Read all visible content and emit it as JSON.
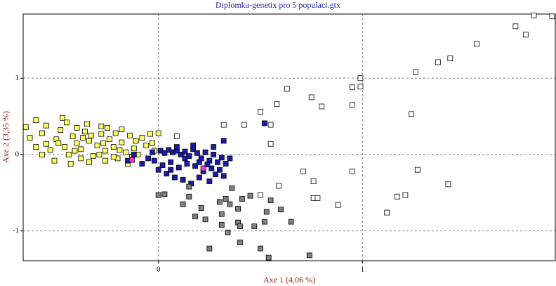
{
  "chart_data": {
    "type": "scatter",
    "title": "Diplomka-genetix pro 5 populaci.gtx",
    "x_label": "Axe 1 (4,06 %)",
    "y_label": "Axe 2 (3,35 %)",
    "xlim": [
      -0.663,
      1.945
    ],
    "ylim": [
      -1.39,
      1.84
    ],
    "xticks": [
      0,
      1
    ],
    "yticks": [
      -1,
      0,
      1
    ],
    "grid": true,
    "series": [
      {
        "color": "#ffff66",
        "x": [
          -0.65,
          -0.63,
          -0.6,
          -0.57,
          -0.55,
          -0.53,
          -0.5,
          -0.48,
          -0.46,
          -0.44,
          -0.42,
          -0.4,
          -0.38,
          -0.36,
          -0.34,
          -0.32,
          -0.3,
          -0.28,
          -0.26,
          -0.24,
          -0.22,
          -0.2,
          -0.18,
          -0.16,
          -0.14,
          -0.12,
          -0.1,
          -0.08,
          -0.06,
          -0.04,
          -0.02,
          0.0,
          -0.6,
          -0.55,
          -0.47,
          -0.45,
          -0.4,
          -0.35,
          -0.28,
          -0.25,
          -0.18,
          -0.51,
          -0.43,
          -0.38,
          -0.34,
          -0.26,
          -0.22,
          -0.15,
          -0.57,
          -0.49,
          -0.41,
          -0.33,
          -0.27,
          -0.19,
          -0.11,
          -0.03,
          -0.37,
          -0.29,
          -0.21,
          -0.13
        ],
        "values": [
          0.36,
          0.22,
          0.1,
          0.28,
          0.14,
          0.06,
          0.2,
          0.32,
          0.1,
          0.0,
          0.24,
          0.15,
          0.07,
          0.3,
          0.18,
          -0.02,
          0.12,
          0.27,
          0.05,
          0.2,
          0.1,
          -0.05,
          0.16,
          0.03,
          0.25,
          0.08,
          0.0,
          0.22,
          0.12,
          0.27,
          0.05,
          0.28,
          0.45,
          0.38,
          0.48,
          0.42,
          0.35,
          0.4,
          0.37,
          0.35,
          0.33,
          -0.08,
          -0.12,
          -0.05,
          -0.1,
          -0.08,
          -0.03,
          -0.12,
          0.0,
          0.15,
          0.05,
          0.25,
          0.15,
          0.06,
          0.18,
          0.15,
          0.22,
          0.0,
          0.28,
          -0.03
        ]
      },
      {
        "color": "#1a1aa8",
        "x": [
          0.01,
          0.03,
          0.05,
          0.07,
          0.09,
          0.11,
          0.13,
          0.15,
          0.17,
          0.19,
          0.21,
          0.23,
          0.25,
          0.27,
          0.29,
          0.31,
          0.33,
          0.3,
          0.26,
          0.22,
          0.18,
          0.14,
          0.1,
          0.06,
          0.02,
          -0.02,
          -0.05,
          -0.08,
          -0.12,
          -0.15,
          -0.03,
          0.04,
          0.08,
          0.12,
          0.16,
          0.2,
          0.25,
          0.28,
          0.32,
          0.09,
          0.17,
          0.27,
          0.32,
          0.35,
          0.24,
          0.52,
          0.0,
          0.13,
          0.2,
          0.06
        ],
        "values": [
          0.05,
          0.02,
          0.06,
          0.03,
          0.05,
          0.0,
          0.04,
          -0.02,
          0.07,
          0.02,
          -0.05,
          0.03,
          -0.08,
          0.0,
          -0.1,
          -0.04,
          -0.12,
          -0.2,
          -0.18,
          -0.22,
          -0.15,
          -0.12,
          -0.17,
          -0.1,
          -0.14,
          -0.08,
          -0.05,
          -0.12,
          0.0,
          -0.08,
          0.03,
          -0.25,
          -0.3,
          -0.33,
          -0.38,
          -0.3,
          -0.35,
          -0.26,
          -0.28,
          0.1,
          0.12,
          0.1,
          0.18,
          -0.05,
          -0.13,
          0.41,
          -0.2,
          -0.05,
          -0.1,
          -0.2
        ]
      },
      {
        "color": "#808080",
        "x": [
          0.0,
          0.15,
          0.12,
          0.21,
          0.18,
          0.23,
          0.3,
          0.33,
          0.35,
          0.41,
          0.39,
          0.45,
          0.55,
          0.6,
          0.53,
          0.31,
          0.31,
          0.34,
          0.39,
          0.4,
          0.47,
          0.52,
          0.65,
          0.4,
          0.25,
          0.5,
          0.54,
          0.74,
          0.15,
          0.03,
          0.36
        ],
        "values": [
          -0.53,
          -0.55,
          -0.65,
          -0.7,
          -0.81,
          -0.85,
          -0.62,
          -0.58,
          -0.65,
          -0.58,
          -0.71,
          -0.54,
          -0.6,
          -0.72,
          -0.75,
          -0.78,
          -0.92,
          -1.02,
          -0.89,
          -0.94,
          -0.94,
          -0.88,
          -0.88,
          -1.15,
          -1.23,
          -1.23,
          -1.35,
          -1.32,
          -0.42,
          -0.52,
          -0.44
        ]
      },
      {
        "color": "#ffffff",
        "x": [
          1.84,
          1.75,
          1.8,
          1.93,
          1.56,
          1.43,
          1.37,
          1.26,
          0.99,
          0.99,
          0.95,
          0.63,
          0.75,
          0.8,
          0.58,
          0.95,
          0.5,
          1.24,
          0.42,
          0.32,
          0.55,
          0.09,
          0.55,
          0.71,
          0.95,
          1.27,
          0.76,
          0.59,
          0.5,
          0.76,
          0.78,
          0.88,
          1.21,
          1.17,
          1.42,
          1.12
        ],
        "values": [
          1.82,
          1.68,
          1.57,
          1.81,
          1.45,
          1.26,
          1.21,
          1.08,
          1.0,
          0.89,
          0.88,
          0.86,
          0.75,
          0.63,
          0.66,
          0.65,
          0.56,
          0.53,
          0.39,
          0.39,
          0.39,
          0.24,
          0.14,
          -0.22,
          -0.22,
          -0.2,
          -0.35,
          -0.41,
          -0.53,
          -0.57,
          -0.57,
          -0.66,
          -0.53,
          -0.55,
          -0.39,
          -0.76
        ]
      },
      {
        "color": "#ff33cc",
        "x": [
          -0.13,
          0.22
        ],
        "values": [
          -0.07,
          -0.18
        ]
      }
    ]
  }
}
